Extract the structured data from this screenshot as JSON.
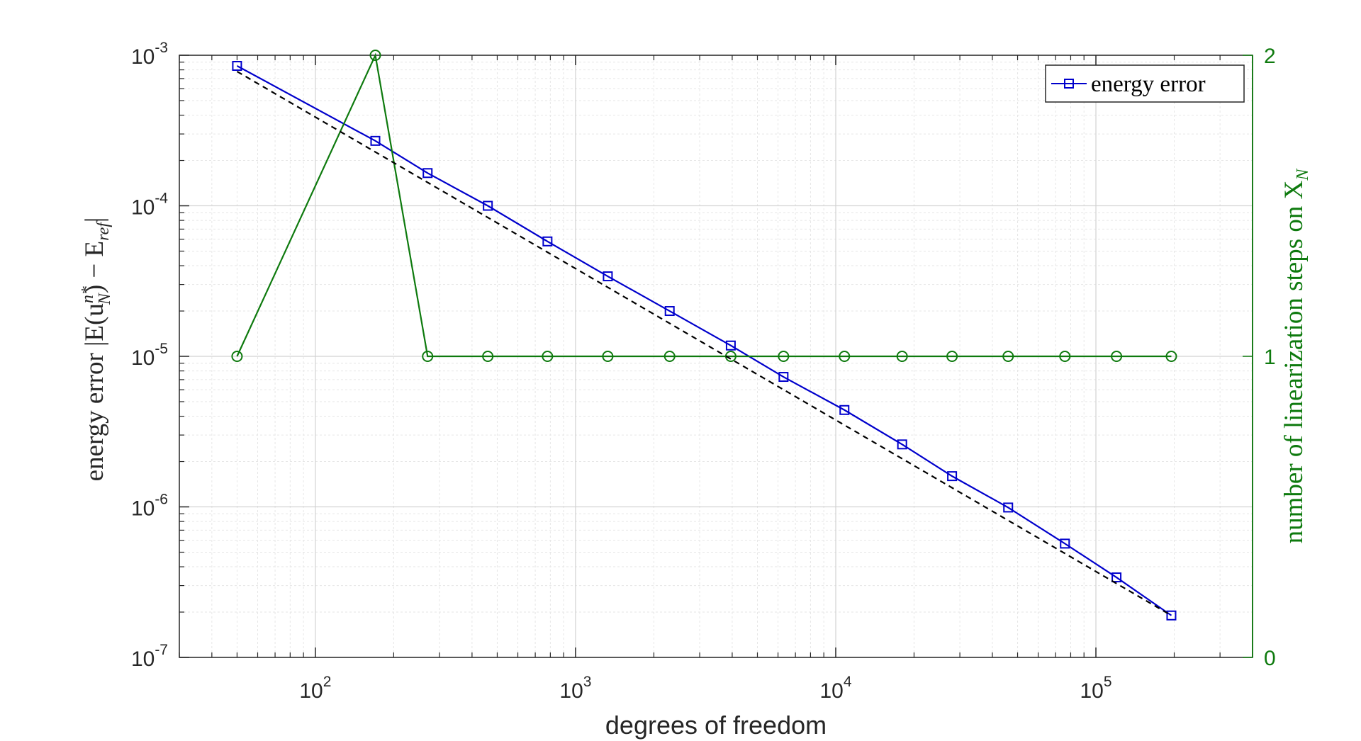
{
  "colors": {
    "energy": "#0000cc",
    "steps": "#0e7a0e",
    "reference": "#000000",
    "axis": "#262626",
    "grid_major": "#d2d2d2",
    "grid_minor": "#e6e6e6"
  },
  "chart_data": {
    "type": "line",
    "xlabel": "degrees of freedom",
    "ylabel_left": {
      "text": "energy error |E(u",
      "sub": "N",
      "sup": "n*",
      "text2": ") − E",
      "sub2": "ref",
      "text3": "|"
    },
    "ylabel_right": {
      "text": "number of linearization steps on X",
      "sub": "N"
    },
    "x_scale": "log",
    "xlim": [
      30,
      400000
    ],
    "x_ticks": [
      {
        "value": 100,
        "base": "10",
        "exp": "2"
      },
      {
        "value": 1000,
        "base": "10",
        "exp": "3"
      },
      {
        "value": 10000,
        "base": "10",
        "exp": "4"
      },
      {
        "value": 100000,
        "base": "10",
        "exp": "5"
      }
    ],
    "y_left_scale": "log",
    "y_left_lim": [
      1e-07,
      0.001
    ],
    "y_left_ticks": [
      {
        "value": 0.001,
        "base": "10",
        "exp": "-3"
      },
      {
        "value": 0.0001,
        "base": "10",
        "exp": "-4"
      },
      {
        "value": 1e-05,
        "base": "10",
        "exp": "-5"
      },
      {
        "value": 1e-06,
        "base": "10",
        "exp": "-6"
      },
      {
        "value": 1e-07,
        "base": "10",
        "exp": "-7"
      }
    ],
    "y_right_lim": [
      0,
      2
    ],
    "y_right_ticks": [
      {
        "value": 0,
        "label": "0"
      },
      {
        "value": 1,
        "label": "1"
      },
      {
        "value": 2,
        "label": "2"
      }
    ],
    "grid": true,
    "legend": {
      "position": "top-right",
      "entries": [
        "energy error"
      ]
    },
    "series": [
      {
        "name": "energy error",
        "axis": "left",
        "marker": "square",
        "line": "solid",
        "x": [
          50,
          170,
          270,
          460,
          780,
          1330,
          2300,
          3950,
          6300,
          10800,
          18000,
          28000,
          46000,
          76000,
          120000,
          195000
        ],
        "y": [
          0.00085,
          0.00027,
          0.000165,
          0.0001,
          5.8e-05,
          3.4e-05,
          2e-05,
          1.18e-05,
          7.3e-06,
          4.4e-06,
          2.6e-06,
          1.6e-06,
          9.9e-07,
          5.7e-07,
          3.4e-07,
          1.9e-07
        ]
      },
      {
        "axis": "right",
        "marker": "circle",
        "line": "solid",
        "x": [
          50,
          170,
          270,
          460,
          780,
          1330,
          2300,
          3950,
          6300,
          10800,
          18000,
          28000,
          46000,
          76000,
          120000,
          195000
        ],
        "y": [
          1,
          2,
          1,
          1,
          1,
          1,
          1,
          1,
          1,
          1,
          1,
          1,
          1,
          1,
          1,
          1
        ]
      },
      {
        "axis": "left",
        "marker": "none",
        "line": "dashed",
        "x": [
          50,
          195000
        ],
        "y": [
          0.00078,
          1.9e-07
        ]
      }
    ]
  }
}
